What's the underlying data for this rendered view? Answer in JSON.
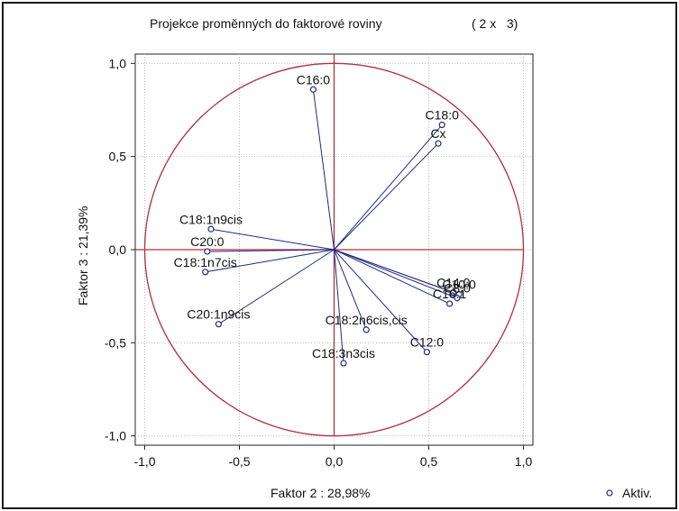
{
  "chart_data": {
    "type": "scatter",
    "title": "Projekce proměnných do faktorové roviny",
    "subtitle": "( 2 x   3)",
    "xlabel": "Faktor 2 : 28,98%",
    "ylabel": "Faktor 3 : 21,39%",
    "xlim": [
      -1.05,
      1.05
    ],
    "ylim": [
      -1.05,
      1.05
    ],
    "xticks": [
      -1.0,
      -0.5,
      0.0,
      0.5,
      1.0
    ],
    "xtick_labels": [
      "-1,0",
      "-0,5",
      "0,0",
      "0,5",
      "1,0"
    ],
    "yticks": [
      1.0,
      0.5,
      0.0,
      -0.5,
      -1.0
    ],
    "ytick_labels": [
      "1,0",
      "0,5",
      "0,0",
      "-0,5",
      "-1,0"
    ],
    "grid": true,
    "unit_circle": true,
    "legend": {
      "position": "bottom-right",
      "entries": [
        "Aktiv."
      ]
    },
    "colors": {
      "circle": "#b0303a",
      "vectors": "#1f2a80",
      "points": "#1f2a80",
      "grid": "#bdbdbd"
    },
    "points": [
      {
        "label": "C16:0",
        "x": -0.11,
        "y": 0.86
      },
      {
        "label": "C18:0",
        "x": 0.57,
        "y": 0.67
      },
      {
        "label": "Cx",
        "x": 0.55,
        "y": 0.57
      },
      {
        "label": "C18:1n9cis",
        "x": -0.65,
        "y": 0.11
      },
      {
        "label": "C20:0",
        "x": -0.67,
        "y": -0.01
      },
      {
        "label": "C18:1n7cis",
        "x": -0.68,
        "y": -0.12
      },
      {
        "label": "C20:1n9cis",
        "x": -0.61,
        "y": -0.4
      },
      {
        "label": "C14:0",
        "x": 0.63,
        "y": -0.23
      },
      {
        "label": "C10:0",
        "x": 0.66,
        "y": -0.24
      },
      {
        "label": "C8:0",
        "x": 0.65,
        "y": -0.26
      },
      {
        "label": "C16:1",
        "x": 0.61,
        "y": -0.29
      },
      {
        "label": "C18:2n6cis,cis",
        "x": 0.17,
        "y": -0.43
      },
      {
        "label": "C12:0",
        "x": 0.49,
        "y": -0.55
      },
      {
        "label": "C18:3n3cis",
        "x": 0.05,
        "y": -0.61
      }
    ]
  }
}
